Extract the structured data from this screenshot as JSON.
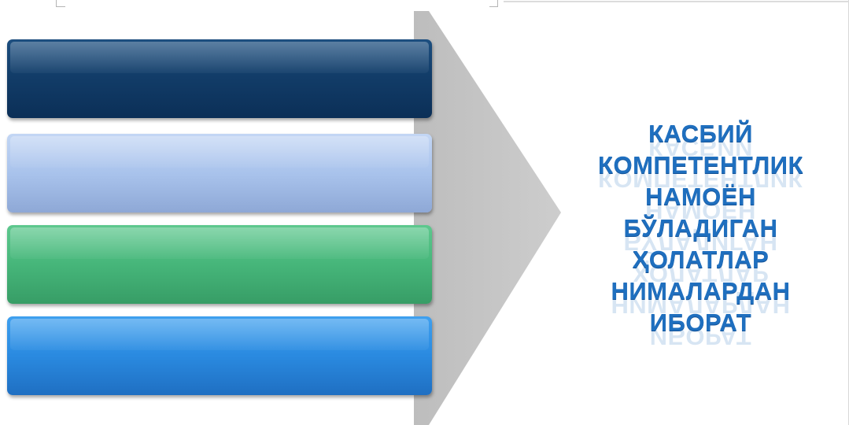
{
  "diagram": {
    "boxes": [
      {
        "label": "",
        "color": "#123d69"
      },
      {
        "label": "",
        "color": "#a9c3ec"
      },
      {
        "label": "",
        "color": "#46b67a"
      },
      {
        "label": "",
        "color": "#2a8ae0"
      }
    ],
    "arrow_color": "#c6c6c6",
    "title_lines": [
      "КАСБИЙ",
      "КОМПЕТЕНТЛИК",
      "НАМОЁН",
      "БЎЛАДИГАН",
      "ҲОЛАТЛАР",
      "НИМАЛАРДАН",
      "ИБОРАТ"
    ],
    "title_color": "#1f6fbf"
  }
}
